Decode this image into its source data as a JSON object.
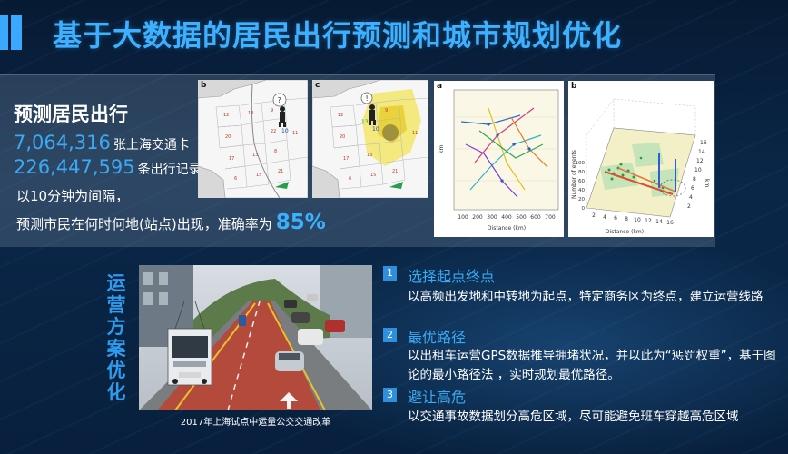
{
  "title": "基于大数据的居民出行预测和城市规划优化",
  "prediction": {
    "heading": "预测居民出行",
    "stats": [
      {
        "number": "7,064,316",
        "label": "张上海交通卡"
      },
      {
        "number": "226,447,595",
        "label": "条出行记录"
      }
    ],
    "interval_text": "以10分钟为间隔，",
    "predict_text": "预测市民在何时何地(站点)出现，准确率为",
    "accuracy": "85%"
  },
  "figures": {
    "panel_b_label": "b",
    "panel_c_label": "c",
    "panel_b_num": "10",
    "panel_c_num": "10",
    "panel_c_num2": "13",
    "panel_a": {
      "label": "a",
      "ylabel": "km",
      "xlabel": "Distance (km)",
      "xticks": [
        "100",
        "200",
        "300",
        "400",
        "500",
        "600",
        "700"
      ]
    },
    "panel_b2": {
      "label": "b",
      "ylabel": "Number of events",
      "xlabel": "Distance (km)",
      "xticks": [
        "2",
        "4",
        "6",
        "8",
        "10",
        "12",
        "14",
        "16"
      ],
      "yticks": [
        "100",
        "80",
        "60",
        "40",
        "20",
        "0"
      ],
      "zlabel": "km",
      "zticks": [
        "16",
        "14",
        "12",
        "10",
        "8",
        "6",
        "4",
        "2"
      ]
    }
  },
  "operations": {
    "side_label": "运营方案优化",
    "photo_caption": "2017年上海试点中运量公交交通改革",
    "items": [
      {
        "num": "1",
        "title": "选择起点终点",
        "desc": "以高频出发地和中转地为起点，特定商务区为终点，建立运营线路"
      },
      {
        "num": "2",
        "title": "最优路径",
        "desc": "以出租车运营GPS数据推导拥堵状况，并以此为“惩罚权重”，基于图论的最小路径法 ，实时规划最优路径。"
      },
      {
        "num": "3",
        "title": "避让高危",
        "desc": "以交通事故数据划分高危区域，尽可能避免班车穿越高危区域"
      }
    ]
  },
  "colors": {
    "accent": "#3aaaf5",
    "badge": "#2f8fdc",
    "background": "#0a2748"
  }
}
